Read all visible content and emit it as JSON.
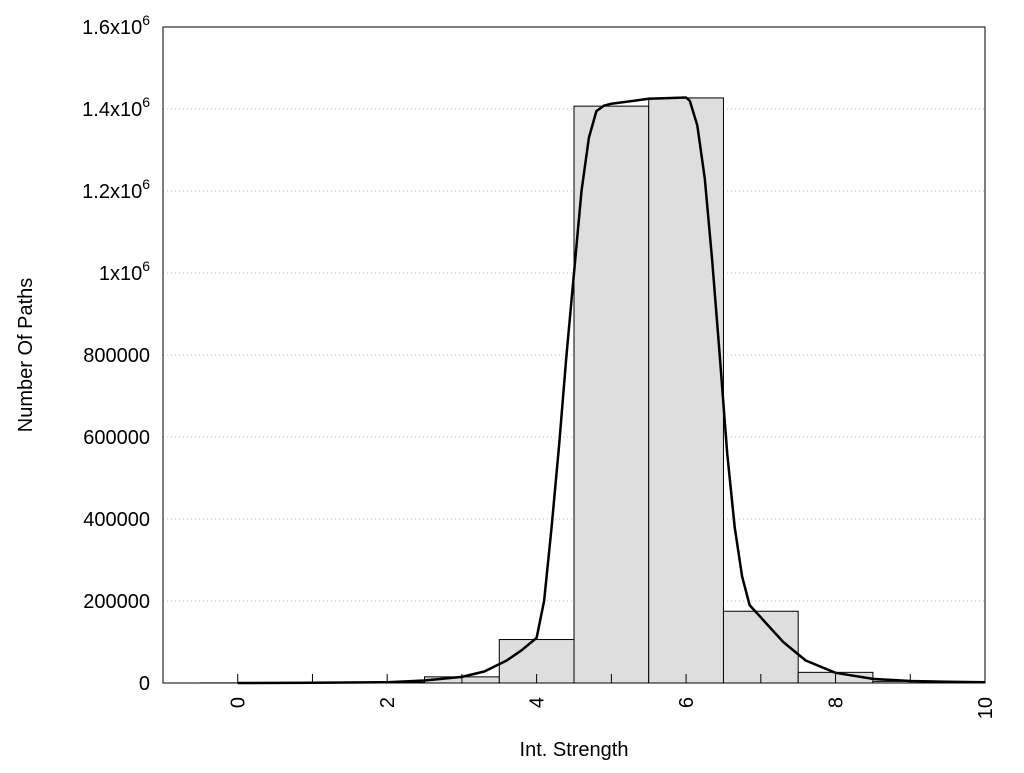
{
  "chart_data": {
    "type": "bar",
    "title": "",
    "xlabel": "Int. Strength",
    "ylabel": "Number Of Paths",
    "xlim": [
      -1,
      10
    ],
    "ylim": [
      0,
      1600000
    ],
    "grid": "horizontal dotted",
    "x_ticks": [
      0,
      1,
      2,
      3,
      4,
      5,
      6,
      7,
      8,
      9,
      10
    ],
    "x_tick_labels": [
      {
        "v": 0,
        "t": "0"
      },
      {
        "v": 2,
        "t": "2"
      },
      {
        "v": 4,
        "t": "4"
      },
      {
        "v": 6,
        "t": "6"
      },
      {
        "v": 8,
        "t": "8"
      },
      {
        "v": 10,
        "t": "10"
      }
    ],
    "y_tick_labels": [
      {
        "v": 0,
        "t": "0"
      },
      {
        "v": 200000,
        "t": "200000"
      },
      {
        "v": 400000,
        "t": "400000"
      },
      {
        "v": 600000,
        "t": "600000"
      },
      {
        "v": 800000,
        "t": "800000"
      },
      {
        "v": 1000000,
        "t": "1x10",
        "sup": "6"
      },
      {
        "v": 1200000,
        "t": "1.2x10",
        "sup": "6"
      },
      {
        "v": 1400000,
        "t": "1.4x10",
        "sup": "6"
      },
      {
        "v": 1600000,
        "t": "1.6x10",
        "sup": "6"
      }
    ],
    "bars": {
      "name": "histogram",
      "color": "#dedede",
      "x": [
        0,
        1,
        2,
        3,
        4,
        5,
        6,
        7,
        8,
        9
      ],
      "values": [
        300,
        500,
        1500,
        15000,
        106000,
        1407000,
        1427000,
        175000,
        26000,
        4000
      ]
    },
    "curve": {
      "name": "fit",
      "color": "#000000",
      "x": [
        0,
        1,
        2,
        2.5,
        3,
        3.3,
        3.6,
        3.8,
        4,
        4.1,
        4.2,
        4.3,
        4.4,
        4.5,
        4.6,
        4.7,
        4.8,
        4.9,
        5,
        5.5,
        6,
        6.05,
        6.15,
        6.25,
        6.35,
        6.45,
        6.55,
        6.65,
        6.75,
        6.85,
        7,
        7.3,
        7.6,
        8,
        8.5,
        9,
        9.5,
        10
      ],
      "y": [
        0,
        500,
        2000,
        6000,
        15000,
        28000,
        55000,
        80000,
        110000,
        200000,
        380000,
        580000,
        800000,
        1000000,
        1200000,
        1330000,
        1395000,
        1408000,
        1413000,
        1425000,
        1428000,
        1420000,
        1360000,
        1230000,
        1030000,
        800000,
        560000,
        380000,
        260000,
        190000,
        160000,
        100000,
        55000,
        25000,
        10000,
        5000,
        3000,
        2000
      ]
    }
  }
}
